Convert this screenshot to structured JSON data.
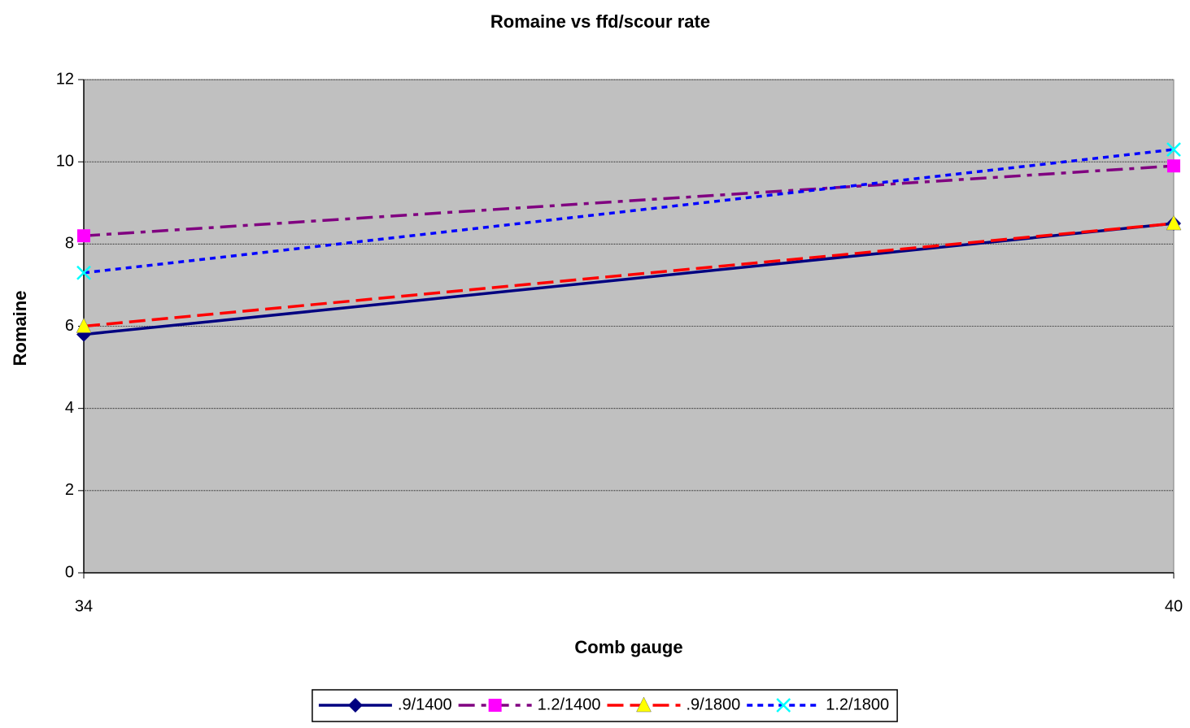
{
  "chart_data": {
    "type": "line",
    "title": "Romaine vs ffd/scour rate",
    "x_label": "Comb gauge",
    "y_label": "Romaine",
    "x": [
      34,
      40
    ],
    "xlim": [
      34,
      40
    ],
    "xticks": [
      34,
      40
    ],
    "ylim": [
      0,
      12
    ],
    "yticks": [
      0,
      2,
      4,
      6,
      8,
      10,
      12
    ],
    "grid": true,
    "plot_background": "#c0c0c0",
    "legend": "bottom",
    "series": [
      {
        "name": ".9/1400",
        "color": "#000080",
        "marker": "diamond",
        "marker_color": "#000080",
        "dash": "solid",
        "values": [
          5.8,
          8.5
        ]
      },
      {
        "name": "1.2/1400",
        "color": "#800080",
        "marker": "square",
        "marker_color": "#ff00ff",
        "dash": "dashdot",
        "values": [
          8.2,
          9.9
        ]
      },
      {
        "name": ".9/1800",
        "color": "#ff0000",
        "marker": "triangle",
        "marker_color": "#ffff00",
        "dash": "dash",
        "values": [
          6.0,
          8.5
        ]
      },
      {
        "name": "1.2/1800",
        "color": "#0000ff",
        "marker": "x",
        "marker_color": "#00ffff",
        "dash": "dot",
        "values": [
          7.3,
          10.3
        ]
      }
    ]
  }
}
